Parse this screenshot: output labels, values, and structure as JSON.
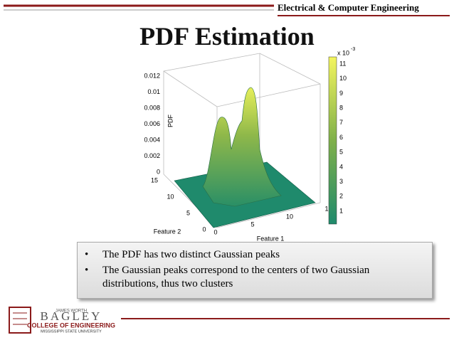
{
  "header": {
    "department": "Electrical & Computer Engineering"
  },
  "title": "PDF Estimation",
  "figure": {
    "z_label": "PDF",
    "x_label": "Feature 1",
    "y_label": "Feature 2",
    "z_ticks": [
      "0",
      "0.002",
      "0.004",
      "0.006",
      "0.008",
      "0.01",
      "0.012"
    ],
    "y_ticks": [
      "15",
      "10",
      "5",
      "0"
    ],
    "x_ticks": [
      "0",
      "5",
      "10",
      "1"
    ],
    "colorbar_base": "x 10",
    "colorbar_exponent": "-3",
    "colorbar_ticks": [
      "1",
      "2",
      "3",
      "4",
      "5",
      "6",
      "7",
      "8",
      "9",
      "10",
      "11"
    ]
  },
  "bullets": [
    "The PDF has two distinct Gaussian peaks",
    "The Gaussian peaks correspond to the centers of two Gaussian distributions, thus two clusters"
  ],
  "logo": {
    "top": "JAMES WORTH",
    "name": "BAGLEY",
    "college": "COLLEGE OF ENGINEERING",
    "university": "MISSISSIPPI STATE UNIVERSITY"
  }
}
